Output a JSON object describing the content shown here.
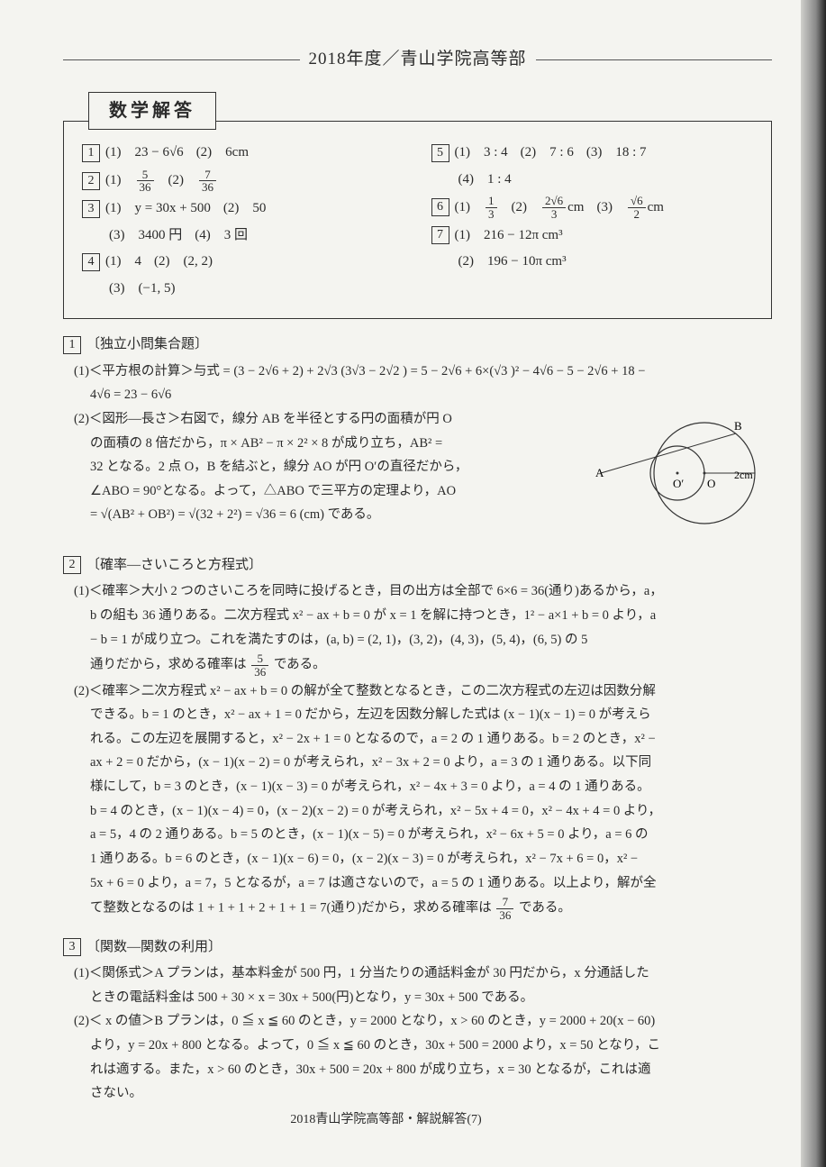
{
  "header": {
    "year_title": "2018年度／青山学院高等部"
  },
  "subject_box": "数学解答",
  "answers": {
    "left": [
      {
        "num": "1",
        "parts": [
          {
            "label": "(1)",
            "val": "23 − 6√6"
          },
          {
            "label": "(2)",
            "val": "6cm"
          }
        ]
      },
      {
        "num": "2",
        "parts": [
          {
            "label": "(1)",
            "frac": {
              "n": "5",
              "d": "36"
            }
          },
          {
            "label": "(2)",
            "frac": {
              "n": "7",
              "d": "36"
            }
          }
        ]
      },
      {
        "num": "3",
        "parts": [
          {
            "label": "(1)",
            "val": "y = 30x + 500"
          },
          {
            "label": "(2)",
            "val": "50"
          }
        ],
        "cont": [
          {
            "label": "(3)",
            "val": "3400 円"
          },
          {
            "label": "(4)",
            "val": "3 回"
          }
        ]
      },
      {
        "num": "4",
        "parts": [
          {
            "label": "(1)",
            "val": "4"
          },
          {
            "label": "(2)",
            "val": "(2, 2)"
          }
        ],
        "cont": [
          {
            "label": "(3)",
            "val": "(−1, 5)"
          }
        ]
      }
    ],
    "right": [
      {
        "num": "5",
        "parts": [
          {
            "label": "(1)",
            "val": "3 : 4"
          },
          {
            "label": "(2)",
            "val": "7 : 6"
          },
          {
            "label": "(3)",
            "val": "18 : 7"
          }
        ],
        "cont": [
          {
            "label": "(4)",
            "val": "1 : 4"
          }
        ]
      },
      {
        "num": "6",
        "parts": [
          {
            "label": "(1)",
            "frac": {
              "n": "1",
              "d": "3"
            }
          },
          {
            "label": "(2)",
            "frac": {
              "n": "2√6",
              "d": "3"
            },
            "suffix": "cm"
          },
          {
            "label": "(3)",
            "frac": {
              "n": "√6",
              "d": "2"
            },
            "suffix": "cm"
          }
        ]
      },
      {
        "num": "7",
        "parts": [
          {
            "label": "(1)",
            "val": "216 − 12π cm³"
          }
        ],
        "cont": [
          {
            "label": "(2)",
            "val": "196 − 10π cm³"
          }
        ]
      }
    ]
  },
  "sections": [
    {
      "num": "1",
      "title": "〔独立小問集合題〕",
      "items": [
        {
          "head": "(1)＜平方根の計算＞与式 = (3 − 2√6 + 2) + 2√3 (3√3 − 2√2 ) = 5 − 2√6 + 6×(√3 )² − 4√6 − 5 − 2√6 + 18 −",
          "cont": [
            "4√6 = 23 − 6√6"
          ]
        },
        {
          "head": "(2)＜図形―長さ＞右図で，線分 AB を半径とする円の面積が円 O",
          "cont": [
            "の面積の 8 倍だから，π × AB² − π × 2² × 8 が成り立ち，AB² =",
            "32 となる。2 点 O，B を結ぶと，線分 AO が円 O′の直径だから，",
            "∠ABO = 90°となる。よって，△ABO で三平方の定理より，AO",
            "= √(AB² + OB²) = √(32 + 2²) = √36 = 6 (cm) である。"
          ],
          "hasDiagram": true
        }
      ]
    },
    {
      "num": "2",
      "title": "〔確率―さいころと方程式〕",
      "items": [
        {
          "head": "(1)＜確率＞大小 2 つのさいころを同時に投げるとき，目の出方は全部で 6×6 = 36(通り)あるから，a，",
          "cont": [
            "b の組も 36 通りある。二次方程式 x² − ax + b = 0 が x = 1 を解に持つとき，1² − a×1 + b = 0 より，a",
            "− b = 1 が成り立つ。これを満たすのは，(a, b) = (2, 1)，(3, 2)，(4, 3)，(5, 4)，(6, 5) の 5",
            "通りだから，求める確率は 5/36 である。"
          ]
        },
        {
          "head": "(2)＜確率＞二次方程式 x² − ax + b = 0 の解が全て整数となるとき，この二次方程式の左辺は因数分解",
          "cont": [
            "できる。b = 1 のとき，x² − ax + 1 = 0 だから，左辺を因数分解した式は (x − 1)(x − 1) = 0 が考えら",
            "れる。この左辺を展開すると，x² − 2x + 1 = 0 となるので，a = 2 の 1 通りある。b = 2 のとき，x² −",
            "ax + 2 = 0 だから，(x − 1)(x − 2) = 0 が考えられ，x² − 3x + 2 = 0 より，a = 3 の 1 通りある。以下同",
            "様にして，b = 3 のとき，(x − 1)(x − 3) = 0 が考えられ，x² − 4x + 3 = 0 より，a = 4 の 1 通りある。",
            "b = 4 のとき，(x − 1)(x − 4) = 0，(x − 2)(x − 2) = 0 が考えられ，x² − 5x + 4 = 0，x² − 4x + 4 = 0 より，",
            "a = 5，4 の 2 通りある。b = 5 のとき，(x − 1)(x − 5) = 0 が考えられ，x² − 6x + 5 = 0 より，a = 6 の",
            "1 通りある。b = 6 のとき，(x − 1)(x − 6) = 0，(x − 2)(x − 3) = 0 が考えられ，x² − 7x + 6 = 0，x² −",
            "5x + 6 = 0 より，a = 7，5 となるが，a = 7 は適さないので，a = 5 の 1 通りある。以上より，解が全",
            "て整数となるのは 1 + 1 + 1 + 2 + 1 + 1 = 7(通り)だから，求める確率は 7/36 である。"
          ]
        }
      ]
    },
    {
      "num": "3",
      "title": "〔関数―関数の利用〕",
      "items": [
        {
          "head": "(1)＜関係式＞A プランは，基本料金が 500 円，1 分当たりの通話料金が 30 円だから，x 分通話した",
          "cont": [
            "ときの電話料金は 500 + 30 × x = 30x + 500(円)となり，y = 30x + 500 である。"
          ]
        },
        {
          "head": "(2)＜ x の値＞B プランは，0 ≦ x ≦ 60 のとき，y = 2000 となり，x > 60 のとき，y = 2000 + 20(x − 60)",
          "cont": [
            "より，y = 20x + 800 となる。よって，0 ≦ x ≦ 60 のとき，30x + 500 = 2000 より，x = 50 となり，こ",
            "れは適する。また，x > 60 のとき，30x + 500 = 20x + 800 が成り立ち，x = 30 となるが，これは適",
            "さない。"
          ]
        }
      ]
    }
  ],
  "diagram": {
    "labels": {
      "A": "A",
      "B": "B",
      "Oprime": "O′",
      "O": "O",
      "radius": "2cm"
    },
    "stroke": "#333"
  },
  "footer": "2018青山学院高等部・解説解答(7)"
}
